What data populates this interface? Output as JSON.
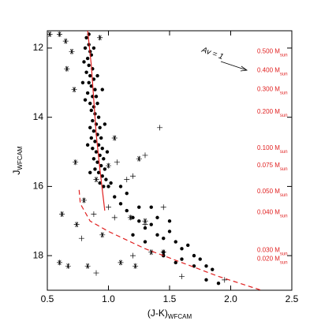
{
  "chart_data": {
    "type": "scatter",
    "xlabel": {
      "text": "(J-K)",
      "sub": "WFCAM"
    },
    "ylabel": {
      "text": "J",
      "sub": "WFCAM"
    },
    "annotation": "Av = 1",
    "xlim": [
      0.5,
      2.5
    ],
    "ylim": [
      11.5,
      19
    ],
    "y_inverted": true,
    "xticks": [
      0.5,
      {
        "value": 1,
        "label": "1.0"
      },
      1.5,
      {
        "value": 2,
        "label": "2.0"
      },
      2.5
    ],
    "yticks": [
      12,
      14,
      16,
      18
    ],
    "series": [
      {
        "marker": "dot",
        "color": "#000000",
        "x": [
          0.82,
          0.84,
          0.81,
          0.85,
          0.83,
          0.86,
          0.84,
          0.87,
          0.82,
          0.85,
          0.88,
          0.84,
          0.86,
          0.89,
          0.83,
          0.87,
          0.9,
          0.85,
          0.88,
          0.91,
          0.86,
          0.89,
          0.92,
          0.87,
          0.9,
          0.85,
          0.93,
          0.88,
          0.91,
          0.86,
          0.94,
          0.89,
          0.92,
          0.87,
          0.95,
          0.9,
          0.93,
          0.88,
          0.96,
          0.91,
          0.94,
          0.89,
          0.97,
          0.92,
          0.95,
          0.98,
          0.93,
          0.96,
          0.8,
          0.79,
          0.81,
          0.95,
          0.97,
          0.83,
          0.99,
          0.85,
          1.02,
          0.84,
          0.88,
          0.91,
          1.0,
          1.05,
          1.1,
          1.15,
          1.2,
          1.25,
          1.3,
          1.35,
          1.4,
          1.45,
          1.5,
          1.55,
          1.6,
          1.65,
          1.7,
          1.75,
          1.8,
          1.85,
          1.6,
          1.45,
          1.3,
          1.2,
          1.4,
          1.35,
          1.5,
          1.7,
          1.8,
          1.9,
          1.55,
          1.25,
          1.1,
          1.15,
          1.45
        ],
        "y": [
          11.7,
          11.9,
          12.0,
          12.1,
          12.3,
          12.2,
          12.5,
          12.6,
          12.7,
          12.8,
          12.9,
          13.0,
          13.1,
          13.2,
          13.3,
          13.4,
          13.4,
          13.6,
          13.7,
          13.6,
          13.8,
          13.9,
          14.0,
          14.1,
          14.2,
          14.3,
          14.3,
          14.4,
          14.5,
          14.6,
          14.6,
          14.7,
          14.8,
          14.9,
          14.9,
          15.0,
          15.1,
          15.2,
          15.2,
          15.3,
          15.4,
          15.5,
          15.5,
          15.6,
          15.7,
          15.8,
          15.9,
          16.0,
          12.4,
          13.0,
          13.5,
          13.2,
          14.2,
          14.8,
          15.0,
          15.6,
          15.9,
          11.6,
          12.0,
          12.8,
          16.0,
          16.3,
          16.5,
          16.7,
          16.9,
          17.0,
          17.2,
          17.1,
          17.4,
          17.5,
          17.3,
          17.6,
          17.8,
          17.7,
          18.0,
          18.1,
          18.3,
          18.4,
          18.1,
          17.9,
          17.6,
          17.4,
          16.9,
          16.6,
          17.0,
          18.3,
          18.7,
          18.8,
          18.2,
          16.6,
          16.0,
          16.2,
          18.0
        ]
      },
      {
        "marker": "asterisk",
        "color": "#000000",
        "x": [
          0.52,
          0.6,
          0.65,
          0.7,
          0.66,
          0.72,
          0.93,
          0.73,
          0.62,
          0.74,
          0.6,
          0.67,
          0.83,
          1.05,
          1.25,
          1.18,
          1.35,
          1.1,
          0.95,
          1.22,
          0.9,
          0.8,
          1.0,
          1.3,
          1.45
        ],
        "y": [
          11.6,
          11.6,
          11.8,
          12.1,
          12.6,
          13.2,
          11.7,
          15.3,
          16.8,
          17.1,
          18.2,
          18.3,
          18.3,
          14.6,
          15.2,
          16.9,
          17.9,
          18.2,
          17.4,
          18.3,
          15.8,
          16.4,
          15.4,
          17.0,
          17.9
        ]
      },
      {
        "marker": "plus",
        "color": "#000000",
        "x": [
          1.42,
          1.3,
          1.15,
          1.07,
          1.0,
          0.88,
          1.3,
          1.2,
          0.9,
          0.78,
          1.6,
          1.45,
          1.05,
          1.95,
          1.2
        ],
        "y": [
          14.3,
          15.1,
          15.8,
          15.3,
          16.6,
          16.8,
          17.1,
          18.0,
          18.5,
          17.5,
          18.6,
          16.6,
          16.9,
          18.7,
          15.7
        ]
      },
      {
        "marker": "line",
        "style": "solid",
        "color": "#e02020",
        "x": [
          0.83,
          0.86,
          0.88,
          0.9,
          0.93,
          0.97
        ],
        "y": [
          11.5,
          12.5,
          13.5,
          14.5,
          15.5,
          16.7
        ]
      },
      {
        "marker": "line",
        "style": "dashed",
        "color": "#e02020",
        "x": [
          0.76,
          0.77,
          0.85,
          1.0,
          1.3,
          1.6,
          1.9,
          2.25
        ],
        "y": [
          16.1,
          16.5,
          17.0,
          17.3,
          17.8,
          18.2,
          18.6,
          19.0
        ]
      }
    ],
    "mass_labels": [
      {
        "text": "0.500 M",
        "sub": "sun",
        "y": 12.1
      },
      {
        "text": "0.400 M",
        "sub": "sun",
        "y": 12.65
      },
      {
        "text": "0.300 M",
        "sub": "sun",
        "y": 13.2
      },
      {
        "text": "0.200 M",
        "sub": "sun",
        "y": 13.85
      },
      {
        "text": "0.100 M",
        "sub": "sun",
        "y": 14.9
      },
      {
        "text": "0.075 M",
        "sub": "sun",
        "y": 15.4
      },
      {
        "text": "0.050 M",
        "sub": "sun",
        "y": 16.15
      },
      {
        "text": "0.040 M",
        "sub": "sun",
        "y": 16.75
      },
      {
        "text": "0.030 M",
        "sub": "sun",
        "y": 17.85
      },
      {
        "text": "0.020 M",
        "sub": "sun",
        "y": 18.1
      }
    ],
    "mass_label_color": "#e02020"
  }
}
